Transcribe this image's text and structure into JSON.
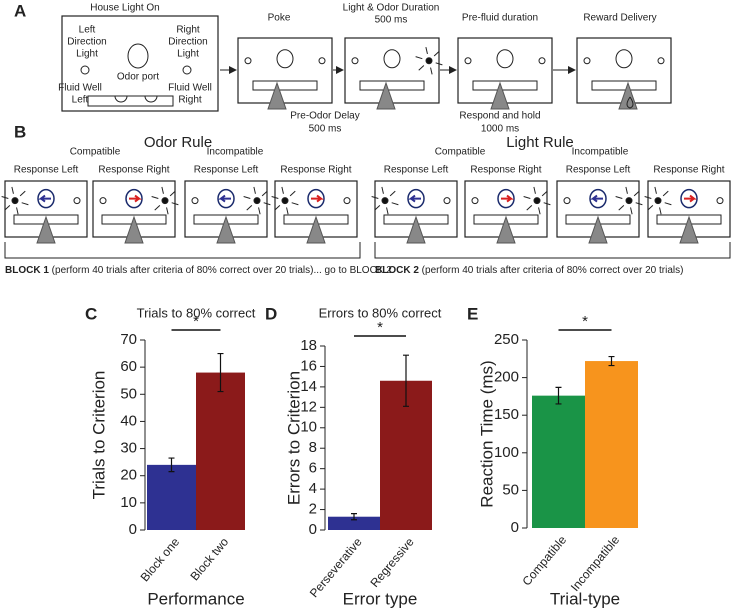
{
  "panels": {
    "a": {
      "letter": "A",
      "house": "House Light On",
      "left_light": [
        "Left",
        "Direction",
        "Light"
      ],
      "right_light": [
        "Right",
        "Direction",
        "Light"
      ],
      "odor_port": "Odor port",
      "well_left": [
        "Fluid Well",
        "Left"
      ],
      "well_right": [
        "Fluid Well",
        "Right"
      ],
      "poke": "Poke",
      "light_odor": [
        "Light & Odor Duration",
        "500 ms"
      ],
      "pre_odor": [
        "Pre-Odor Delay",
        "500 ms"
      ],
      "pre_fluid": "Pre-fluid duration",
      "respond": [
        "Respond and hold",
        "1000 ms"
      ],
      "reward": "Reward Delivery"
    },
    "b": {
      "letter": "B",
      "odor_rule": "Odor Rule",
      "light_rule": "Light Rule",
      "conditions": [
        "Compatible",
        "Incompatible",
        "Compatible",
        "Incompatible"
      ],
      "responses": [
        "Response Left",
        "Response Right",
        "Response Left",
        "Response Right",
        "Response Left",
        "Response Right",
        "Response Left",
        "Response Right"
      ],
      "block1": [
        "BLOCK 1",
        "(perform 40 trials after criteria of 80% correct over 20 trials)... go to BLOCK 2"
      ],
      "block2": [
        "BLOCK 2",
        "(perform 40 trials after criteria of 80% correct over 20 trials)"
      ]
    }
  },
  "chart_data": [
    {
      "type": "bar",
      "panel": "C",
      "title": "Trials to 80% correct",
      "ylabel": "Trials to Criterion",
      "xlabel": "Performance",
      "categories": [
        "Block one",
        "Block two"
      ],
      "values": [
        24,
        58
      ],
      "errors": [
        2.5,
        7
      ],
      "colors": [
        "#2e3192",
        "#8b1a1a"
      ],
      "ylim": [
        0,
        70
      ],
      "yticks": [
        0,
        10,
        20,
        30,
        40,
        50,
        60,
        70
      ],
      "significance": "*"
    },
    {
      "type": "bar",
      "panel": "D",
      "title": "Errors to 80% correct",
      "ylabel": "Errors to Criterion",
      "xlabel": "Error type",
      "categories": [
        "Perseverative",
        "Regressive"
      ],
      "values": [
        1.3,
        14.6
      ],
      "errors": [
        0.3,
        2.5
      ],
      "colors": [
        "#2e3192",
        "#8b1a1a"
      ],
      "ylim": [
        0,
        18
      ],
      "yticks": [
        0,
        2,
        4,
        6,
        8,
        10,
        12,
        14,
        16,
        18
      ],
      "significance": "*"
    },
    {
      "type": "bar",
      "panel": "E",
      "ylabel": "Reaction Time (ms)",
      "xlabel": "Trial-type",
      "categories": [
        "Compatible",
        "Incompatible"
      ],
      "values": [
        176,
        222
      ],
      "errors": [
        11,
        6
      ],
      "colors": [
        "#1a9447",
        "#f7941d"
      ],
      "ylim": [
        0,
        250
      ],
      "yticks": [
        0,
        50,
        100,
        150,
        200,
        250
      ],
      "significance": "*"
    }
  ]
}
